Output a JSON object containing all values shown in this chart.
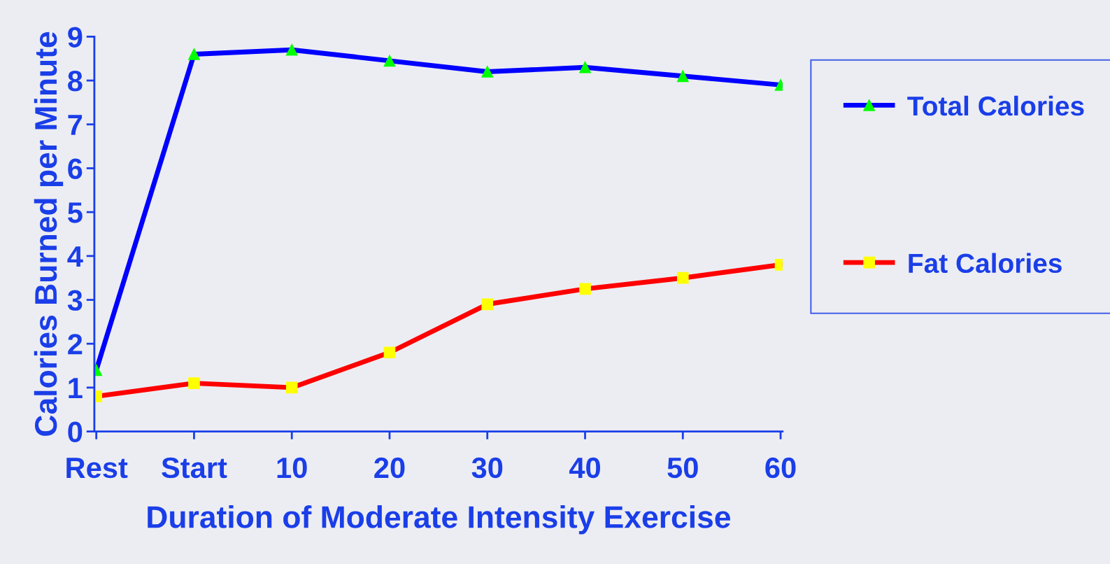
{
  "chart_data": {
    "type": "line",
    "xlabel": "Duration of Moderate Intensity Exercise",
    "ylabel": "Calories Burned per Minute",
    "categories": [
      "Rest",
      "Start",
      "10",
      "20",
      "30",
      "40",
      "50",
      "60"
    ],
    "series": [
      {
        "name": "Total Calories",
        "color": "#0000ff",
        "marker": "triangle",
        "values": [
          1.4,
          8.6,
          8.7,
          8.45,
          8.2,
          8.3,
          8.1,
          7.9
        ]
      },
      {
        "name": "Fat Calories",
        "color": "#ff0000",
        "marker": "square",
        "values": [
          0.8,
          1.1,
          1.0,
          1.8,
          2.9,
          3.25,
          3.5,
          3.8
        ]
      }
    ],
    "ylim": [
      0,
      9
    ],
    "yticks": [
      0,
      1,
      2,
      3,
      4,
      5,
      6,
      7,
      8,
      9
    ],
    "grid": false,
    "legend": "right",
    "line_style": "solid"
  }
}
